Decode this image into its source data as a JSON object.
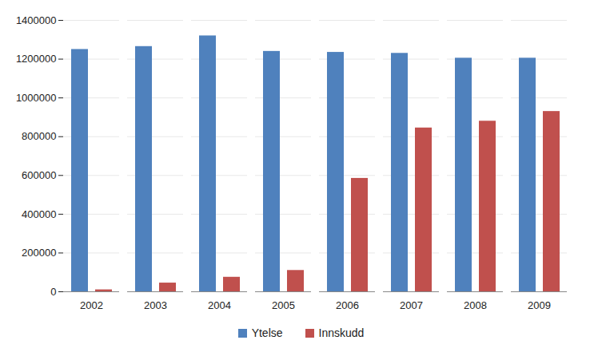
{
  "chart_data": {
    "type": "bar",
    "categories": [
      "2002",
      "2003",
      "2004",
      "2005",
      "2006",
      "2007",
      "2008",
      "2009"
    ],
    "series": [
      {
        "name": "Ytelse",
        "color": "#4f81bd",
        "values": [
          1250000,
          1265000,
          1320000,
          1240000,
          1235000,
          1230000,
          1205000,
          1205000
        ]
      },
      {
        "name": "Innskudd",
        "color": "#c0504d",
        "values": [
          10000,
          45000,
          75000,
          110000,
          585000,
          845000,
          880000,
          930000
        ]
      }
    ],
    "ylim": [
      0,
      1400000
    ],
    "yticks": [
      0,
      200000,
      400000,
      600000,
      800000,
      1000000,
      1200000,
      1400000
    ],
    "grid": true,
    "legend": "bottom"
  }
}
